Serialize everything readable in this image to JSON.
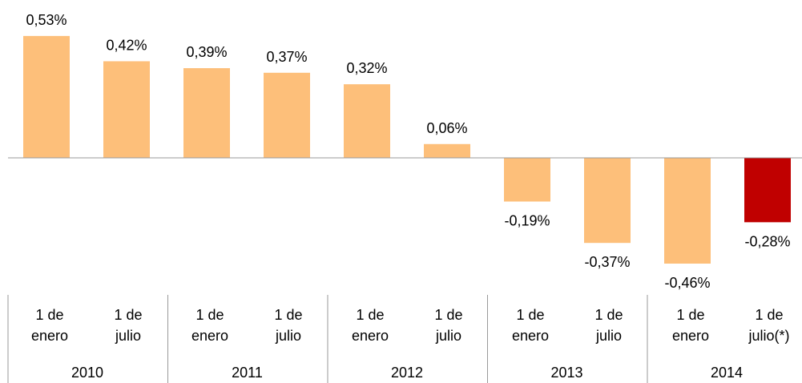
{
  "chart_data": {
    "type": "bar",
    "categories": [
      "1 de enero",
      "1 de julio",
      "1 de enero",
      "1 de julio",
      "1 de enero",
      "1 de julio",
      "1 de enero",
      "1 de julio",
      "1 de enero",
      "1 de julio(*)"
    ],
    "groups": [
      "2010",
      "2011",
      "2012",
      "2013",
      "2014"
    ],
    "values": [
      0.53,
      0.42,
      0.39,
      0.37,
      0.32,
      0.06,
      -0.19,
      -0.37,
      -0.46,
      -0.28
    ],
    "value_labels": [
      "0,53%",
      "0,42%",
      "0,39%",
      "0,37%",
      "0,32%",
      "0,06%",
      "-0,19%",
      "-0,37%",
      "-0,46%",
      "-0,28%"
    ],
    "colors": [
      "#fdbf7a",
      "#fdbf7a",
      "#fdbf7a",
      "#fdbf7a",
      "#fdbf7a",
      "#fdbf7a",
      "#fdbf7a",
      "#fdbf7a",
      "#fdbf7a",
      "#c00000"
    ]
  }
}
